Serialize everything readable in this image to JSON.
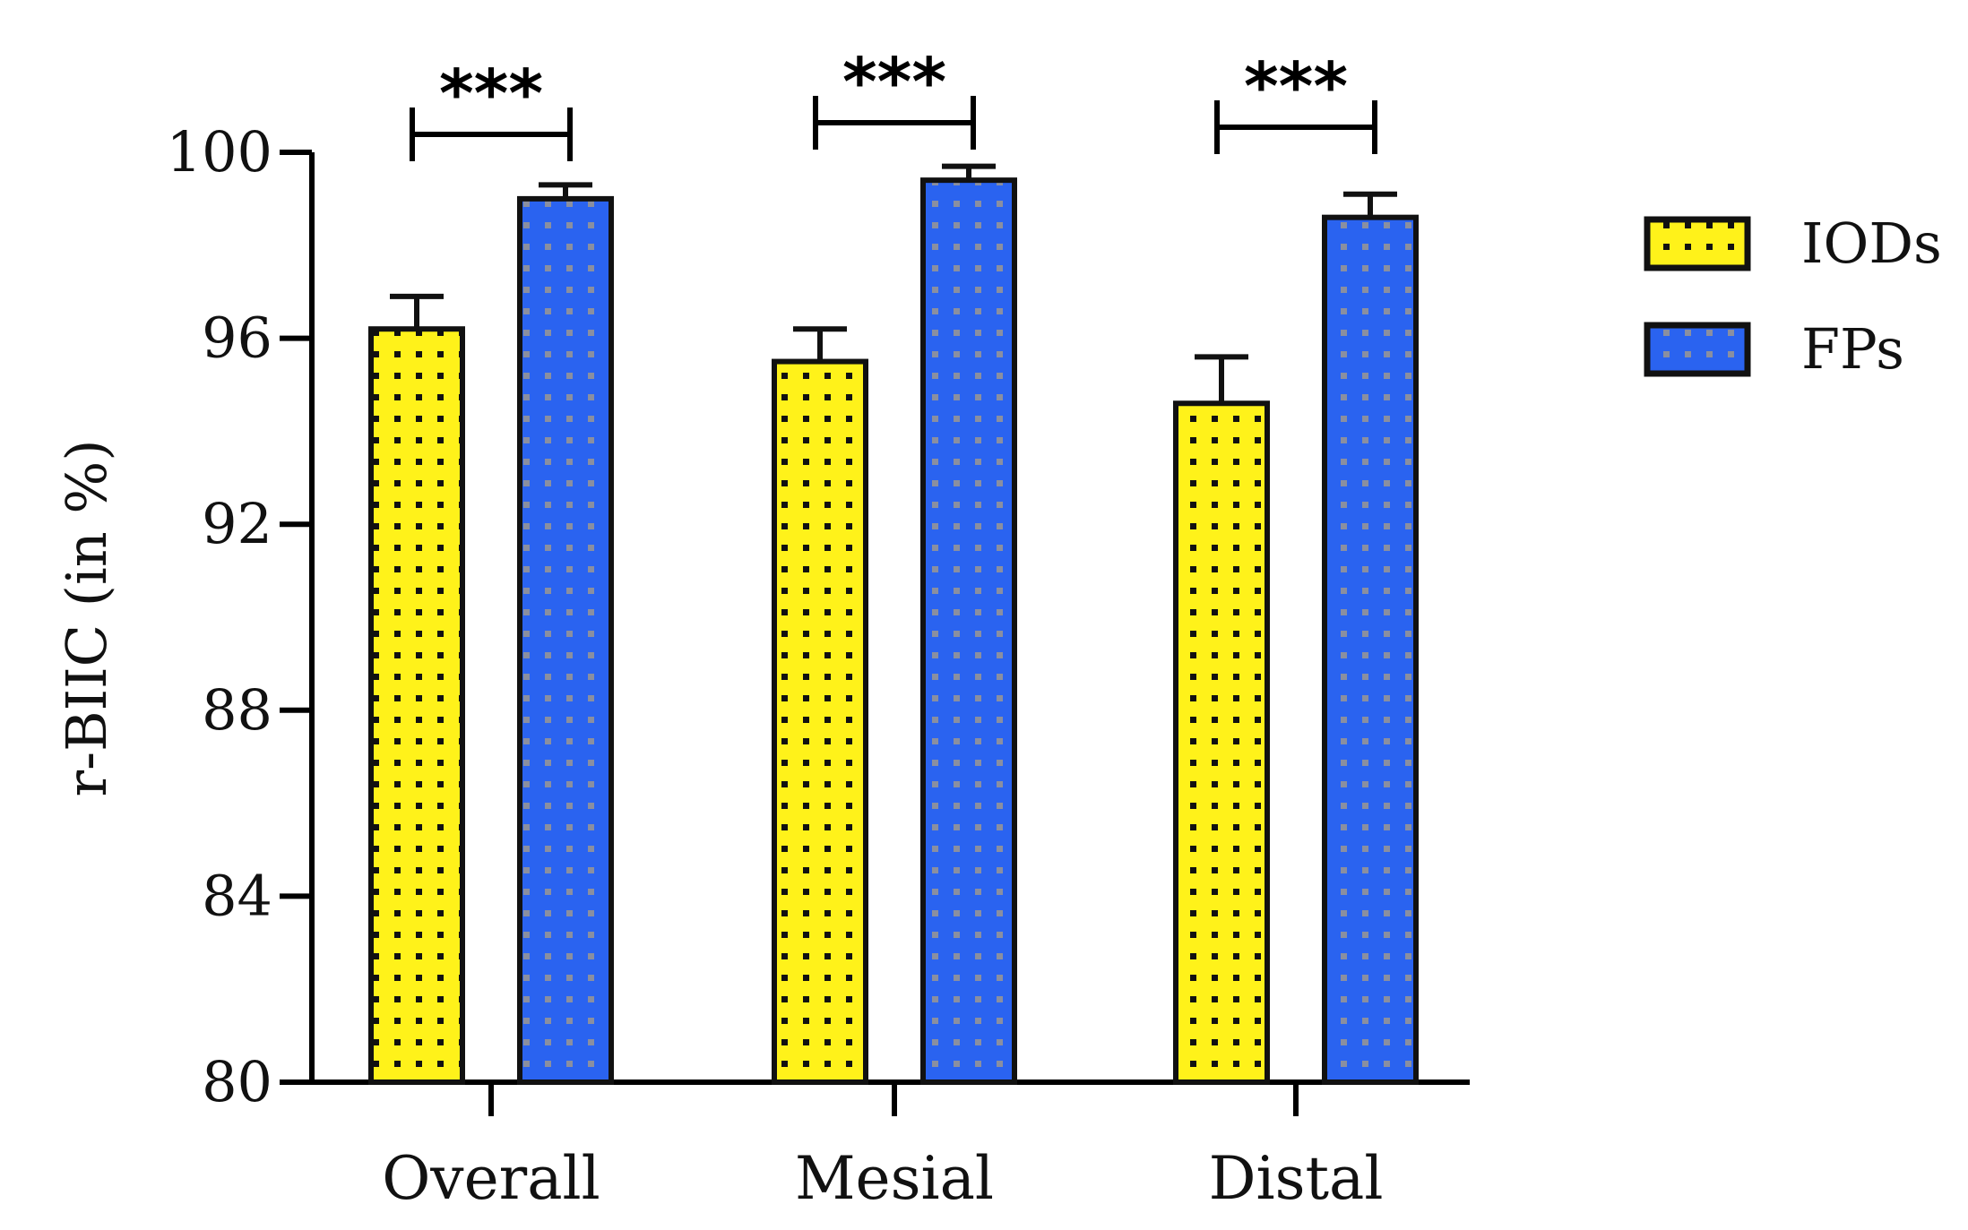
{
  "chart_data": {
    "type": "bar",
    "title": "",
    "xlabel": "",
    "ylabel": "r-BIIC (in %)",
    "ylim": [
      80,
      100
    ],
    "yticks": [
      80,
      84,
      88,
      92,
      96,
      100
    ],
    "categories": [
      "Overall",
      "Mesial",
      "Distal"
    ],
    "series": [
      {
        "name": "IODs",
        "values": [
          96.2,
          95.5,
          94.6
        ],
        "errors": [
          0.7,
          0.7,
          1.0
        ],
        "color": "#FFF21A",
        "pattern": "black-dots"
      },
      {
        "name": "FPs",
        "values": [
          99.0,
          99.4,
          98.6
        ],
        "errors": [
          0.3,
          0.3,
          0.5
        ],
        "color": "#2A63F0",
        "pattern": "gray-dots"
      }
    ],
    "significance": [
      "***",
      "***",
      "***"
    ],
    "legend": {
      "position": "right",
      "entries": [
        "IODs",
        "FPs"
      ]
    },
    "grid": false
  }
}
